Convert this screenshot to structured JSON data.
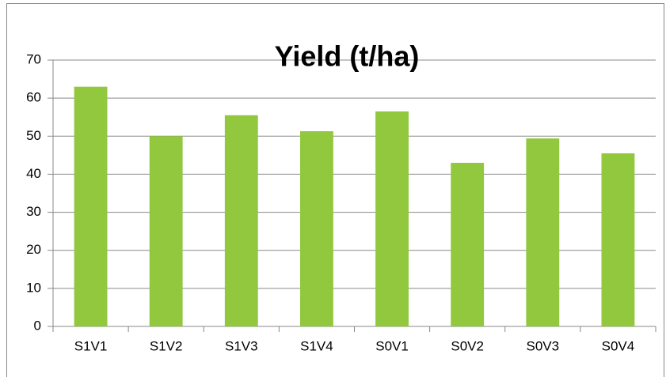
{
  "chart_data": {
    "type": "bar",
    "title": "Yield (t/ha)",
    "categories": [
      "S1V1",
      "S1V2",
      "S1V3",
      "S1V4",
      "S0V1",
      "S0V2",
      "S0V3",
      "S0V4"
    ],
    "values": [
      63,
      50,
      55.5,
      51.3,
      56.5,
      43,
      49.4,
      45.5
    ],
    "color": "#92c83e",
    "ylim": [
      0,
      70
    ],
    "yticks": [
      0,
      10,
      20,
      30,
      40,
      50,
      60,
      70
    ],
    "grid": true
  }
}
